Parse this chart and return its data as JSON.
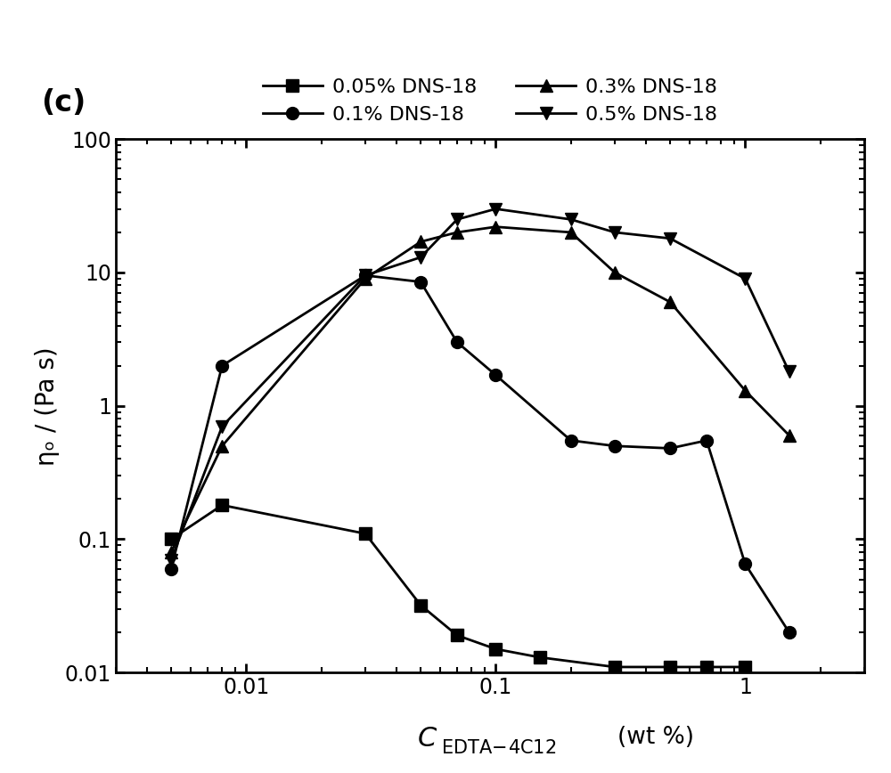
{
  "ylabel": "ηₒ / (Pa s)",
  "xlim": [
    0.003,
    3.0
  ],
  "ylim": [
    0.01,
    100
  ],
  "series": [
    {
      "label": "0.05% DNS-18",
      "marker": "s",
      "x": [
        0.005,
        0.008,
        0.03,
        0.05,
        0.07,
        0.1,
        0.15,
        0.3,
        0.5,
        0.7,
        1.0
      ],
      "y": [
        0.1,
        0.18,
        0.11,
        0.032,
        0.019,
        0.015,
        0.013,
        0.011,
        0.011,
        0.011,
        0.011
      ]
    },
    {
      "label": "0.1% DNS-18",
      "marker": "o",
      "x": [
        0.005,
        0.008,
        0.03,
        0.05,
        0.07,
        0.1,
        0.2,
        0.3,
        0.5,
        0.7,
        1.0,
        1.5
      ],
      "y": [
        0.06,
        2.0,
        9.5,
        8.5,
        3.0,
        1.7,
        0.55,
        0.5,
        0.48,
        0.55,
        0.065,
        0.02
      ]
    },
    {
      "label": "0.3% DNS-18",
      "marker": "^",
      "x": [
        0.005,
        0.008,
        0.03,
        0.05,
        0.07,
        0.1,
        0.2,
        0.3,
        0.5,
        1.0,
        1.5
      ],
      "y": [
        0.08,
        0.5,
        9.0,
        17.0,
        20.0,
        22.0,
        20.0,
        10.0,
        6.0,
        1.3,
        0.6
      ]
    },
    {
      "label": "0.5% DNS-18",
      "marker": "v",
      "x": [
        0.005,
        0.008,
        0.03,
        0.05,
        0.07,
        0.1,
        0.2,
        0.3,
        0.5,
        1.0,
        1.5
      ],
      "y": [
        0.07,
        0.7,
        9.5,
        13.0,
        25.0,
        30.0,
        25.0,
        20.0,
        18.0,
        9.0,
        1.8
      ]
    }
  ],
  "line_color": "#000000",
  "marker_size": 10,
  "line_width": 2.0,
  "legend_fontsize": 16,
  "axis_label_fontsize": 20,
  "tick_label_fontsize": 17,
  "panel_label": "(c)",
  "panel_label_fontsize": 24
}
